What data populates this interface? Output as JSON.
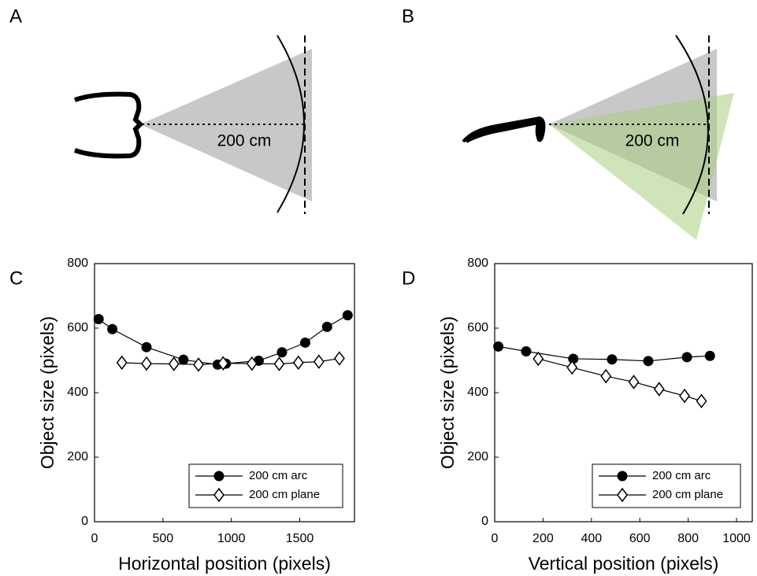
{
  "diagrams": [
    {
      "panel_label": "A",
      "distance_label": "200 cm"
    },
    {
      "panel_label": "B",
      "distance_label": "200 cm"
    }
  ],
  "chart_data": [
    {
      "type": "line",
      "panel_label": "C",
      "x_label": "Horizontal position (pixels)",
      "y_label": "Object size (pixels)",
      "xlim": [
        0,
        1900
      ],
      "xticks": [
        0,
        500,
        1000,
        1500
      ],
      "ylim": [
        0,
        800
      ],
      "yticks": [
        0,
        200,
        400,
        600,
        800
      ],
      "legend": "lower right",
      "series": [
        {
          "name": "200 cm arc",
          "color": "#000000",
          "marker": "circle",
          "x": [
            30,
            130,
            380,
            650,
            900,
            960,
            1200,
            1370,
            1540,
            1700,
            1850
          ],
          "values": [
            628,
            597,
            541,
            502,
            487,
            490,
            499,
            525,
            555,
            604,
            640
          ]
        },
        {
          "name": "200 cm plane",
          "color": "#000000",
          "marker": "diamond",
          "x": [
            200,
            380,
            580,
            760,
            940,
            1150,
            1350,
            1490,
            1640,
            1790
          ],
          "values": [
            493,
            490,
            489,
            487,
            491,
            490,
            489,
            493,
            496,
            506
          ]
        }
      ]
    },
    {
      "type": "line",
      "panel_label": "D",
      "x_label": "Vertical position (pixels)",
      "y_label": "Object size (pixels)",
      "xlim": [
        0,
        1065
      ],
      "xticks": [
        0,
        200,
        400,
        600,
        800,
        1000
      ],
      "ylim": [
        0,
        800
      ],
      "yticks": [
        0,
        200,
        400,
        600,
        800
      ],
      "legend": "lower right",
      "series": [
        {
          "name": "200 cm arc",
          "color": "#000000",
          "marker": "circle",
          "x": [
            15,
            130,
            325,
            485,
            635,
            795,
            890
          ],
          "values": [
            543,
            528,
            505,
            503,
            498,
            510,
            514
          ]
        },
        {
          "name": "200 cm plane",
          "color": "#000000",
          "marker": "diamond",
          "x": [
            180,
            320,
            460,
            575,
            680,
            785,
            855
          ],
          "values": [
            505,
            478,
            451,
            433,
            411,
            390,
            374
          ]
        }
      ]
    }
  ]
}
